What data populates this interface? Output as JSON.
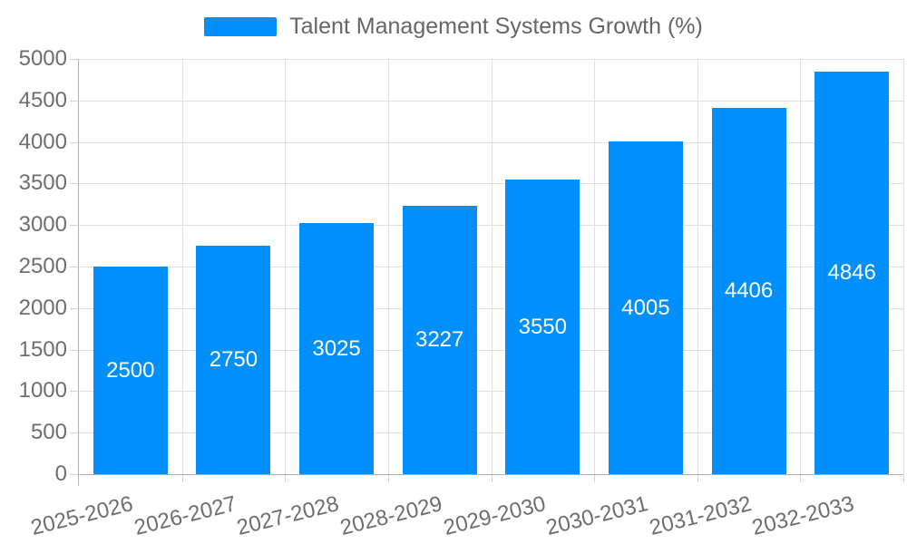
{
  "chart_data": {
    "type": "bar",
    "title": "Talent Management Systems Growth (%)",
    "categories": [
      "2025-2026",
      "2026-2027",
      "2027-2028",
      "2028-2029",
      "2029-2030",
      "2030-2031",
      "2031-2032",
      "2032-2033"
    ],
    "values": [
      2500,
      2750,
      3025,
      3227,
      3550,
      4005,
      4406,
      4846
    ],
    "xlabel": "",
    "ylabel": "",
    "ylim": [
      0,
      5000
    ],
    "yticks": [
      0,
      500,
      1000,
      1500,
      2000,
      2500,
      3000,
      3500,
      4000,
      4500,
      5000
    ],
    "grid": true,
    "legend_position": "top-center",
    "x_label_rotation_deg": -14,
    "colors": {
      "bar": "#008FFB",
      "bar_label": "#FFFFFF",
      "grid": "#E0E0E0",
      "axis_line": "#B0B0B0",
      "tick": "#D2D2D2",
      "axis_text": "#6E6E6E",
      "legend_text": "#666666",
      "background": "#FFFFFF"
    }
  }
}
